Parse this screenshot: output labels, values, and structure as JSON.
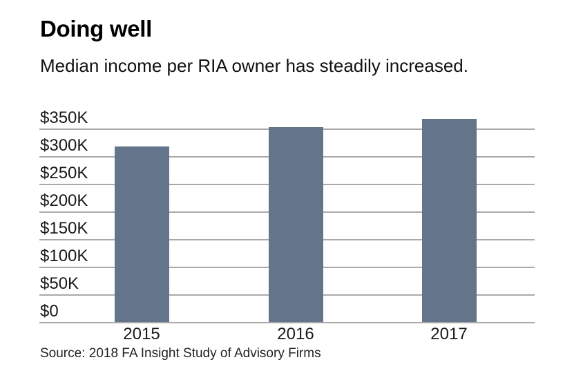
{
  "header": {
    "title": "Doing well",
    "subtitle": "Median income per RIA owner has steadily increased."
  },
  "footer": {
    "source": "Source: 2018 FA Insight Study of Advisory Firms"
  },
  "chart_data": {
    "type": "bar",
    "title": "Doing well",
    "subtitle": "Median income per RIA owner has steadily increased.",
    "source": "Source: 2018 FA Insight Study of Advisory Firms",
    "categories": [
      "2015",
      "2016",
      "2017"
    ],
    "values": [
      318000,
      352000,
      368000
    ],
    "unit": "USD",
    "xlabel": "",
    "ylabel": "",
    "ylim": [
      0,
      350000
    ],
    "grid": true,
    "legend": false,
    "y_ticks": [
      {
        "label": "$350K",
        "value": 350000
      },
      {
        "label": "$300K",
        "value": 300000
      },
      {
        "label": "$250K",
        "value": 250000
      },
      {
        "label": "$200K",
        "value": 200000
      },
      {
        "label": "$150K",
        "value": 150000
      },
      {
        "label": "$100K",
        "value": 100000
      },
      {
        "label": "$50K",
        "value": 50000
      },
      {
        "label": "$0",
        "value": 0
      }
    ],
    "colors": {
      "bar": "#64748b",
      "gridline": "#a9a9a9",
      "text": "#1a1a1a",
      "background": "#ffffff"
    }
  }
}
